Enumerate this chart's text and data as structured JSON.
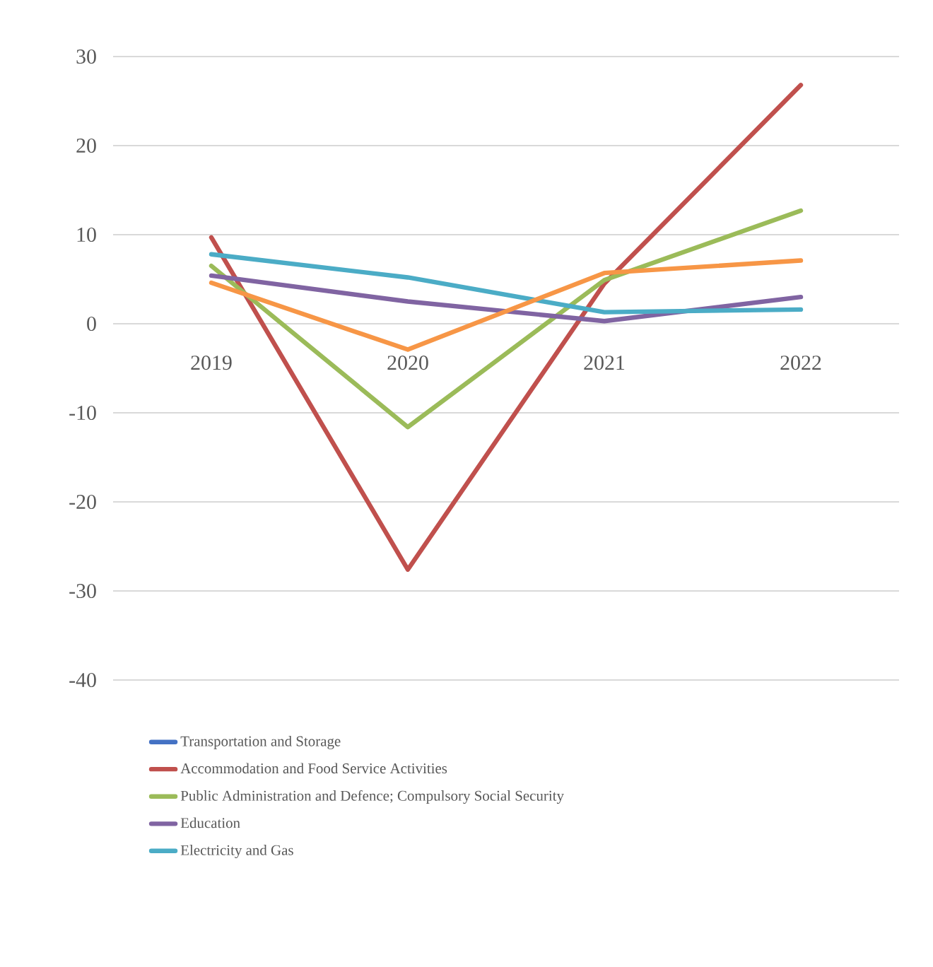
{
  "chart_data": {
    "type": "line",
    "categories": [
      "2019",
      "2020",
      "2021",
      "2022"
    ],
    "series": [
      {
        "name": "Transportation and Storage",
        "color": "#4472c4",
        "values": [
          null,
          null,
          null,
          null
        ]
      },
      {
        "name": "Accommodation and Food Service Activities",
        "color": "#c0504d",
        "values": [
          9.7,
          -27.6,
          4.5,
          26.8
        ]
      },
      {
        "name": "Public Administration and Defence; Compulsory Social Security",
        "color": "#9bbb59",
        "values": [
          6.5,
          -11.6,
          4.9,
          12.7
        ]
      },
      {
        "name": "Education",
        "color": "#8064a2",
        "values": [
          5.4,
          2.5,
          0.3,
          3.0
        ]
      },
      {
        "name": "Electricity and Gas",
        "color": "#4bacc6",
        "values": [
          7.8,
          5.2,
          1.3,
          1.6
        ]
      },
      {
        "color": "#f79646",
        "values": [
          4.6,
          -2.9,
          5.7,
          7.1
        ]
      }
    ],
    "ylim": [
      -40,
      30
    ],
    "yticks": [
      -40,
      -30,
      -20,
      -10,
      0,
      10,
      20,
      30
    ],
    "grid": "y",
    "legend": "bottom",
    "marker": "none",
    "line_style": "solid"
  }
}
